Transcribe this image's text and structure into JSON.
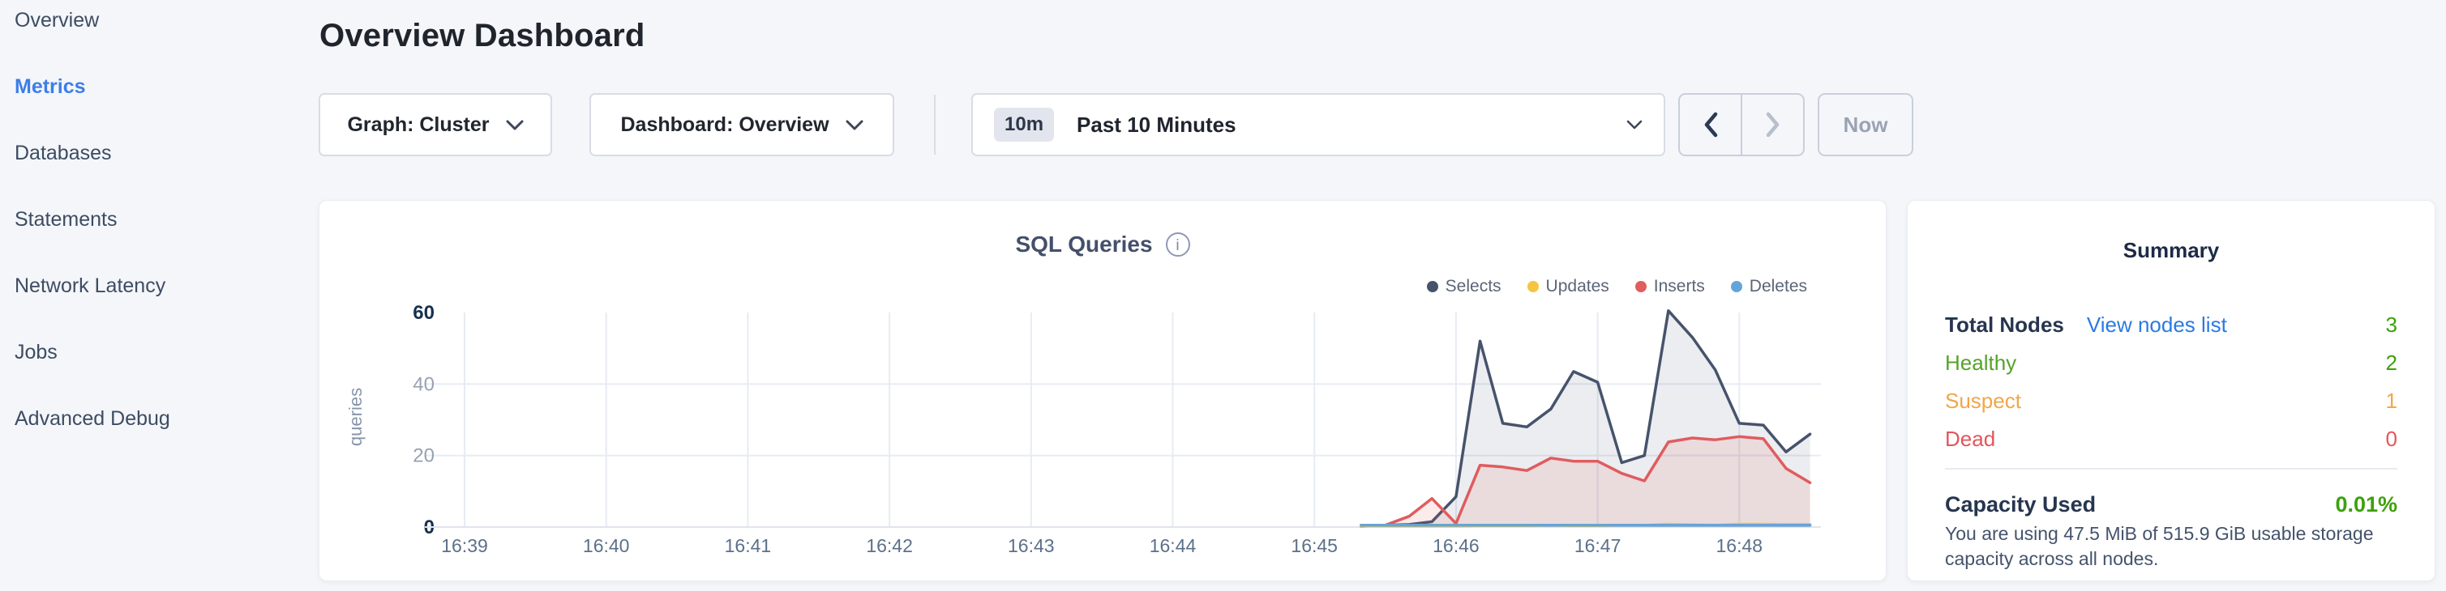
{
  "sidebar": {
    "items": [
      {
        "label": "Overview",
        "active": false
      },
      {
        "label": "Metrics",
        "active": true
      },
      {
        "label": "Databases",
        "active": false
      },
      {
        "label": "Statements",
        "active": false
      },
      {
        "label": "Network Latency",
        "active": false
      },
      {
        "label": "Jobs",
        "active": false
      },
      {
        "label": "Advanced Debug",
        "active": false
      }
    ],
    "active_color": "#3d7ee8"
  },
  "header": {
    "title": "Overview Dashboard"
  },
  "controls": {
    "graph_dropdown": {
      "label": "Graph: Cluster"
    },
    "dashboard_dropdown": {
      "label": "Dashboard: Overview"
    },
    "time_picker": {
      "badge": "10m",
      "label": "Past 10 Minutes"
    },
    "now_label": "Now"
  },
  "chart_data": {
    "type": "area",
    "title": "SQL Queries",
    "ylabel": "queries",
    "ylim": [
      0,
      60
    ],
    "y_ticks": [
      0,
      20,
      40,
      60
    ],
    "grid": true,
    "legend_position": "top-right",
    "x_ticks": [
      {
        "label": "16:39",
        "t": 0
      },
      {
        "label": "16:40",
        "t": 1
      },
      {
        "label": "16:41",
        "t": 2
      },
      {
        "label": "16:42",
        "t": 3
      },
      {
        "label": "16:43",
        "t": 4
      },
      {
        "label": "16:44",
        "t": 5
      },
      {
        "label": "16:45",
        "t": 6
      },
      {
        "label": "16:46",
        "t": 7
      },
      {
        "label": "16:47",
        "t": 8
      },
      {
        "label": "16:48",
        "t": 9
      }
    ],
    "series": [
      {
        "name": "Selects",
        "color": "#47536c",
        "fill": "rgba(68,82,107,0.10)",
        "points": [
          [
            6.33,
            0.5
          ],
          [
            6.5,
            0.5
          ],
          [
            6.67,
            0.7
          ],
          [
            6.83,
            1.5
          ],
          [
            7.0,
            8.5
          ],
          [
            7.17,
            52
          ],
          [
            7.33,
            29
          ],
          [
            7.5,
            28
          ],
          [
            7.67,
            33
          ],
          [
            7.83,
            43.5
          ],
          [
            8.0,
            40.5
          ],
          [
            8.17,
            18
          ],
          [
            8.33,
            20
          ],
          [
            8.5,
            60.5
          ],
          [
            8.67,
            53
          ],
          [
            8.83,
            44
          ],
          [
            9.0,
            29
          ],
          [
            9.17,
            28.5
          ],
          [
            9.33,
            21
          ],
          [
            9.5,
            26
          ]
        ]
      },
      {
        "name": "Updates",
        "color": "#f4c542",
        "fill": "none",
        "points": [
          [
            6.33,
            0.3
          ],
          [
            6.5,
            0.3
          ],
          [
            6.67,
            0.3
          ],
          [
            6.83,
            0.3
          ],
          [
            7.0,
            0.3
          ],
          [
            7.17,
            0.4
          ],
          [
            7.33,
            0.4
          ],
          [
            7.5,
            0.4
          ],
          [
            7.67,
            0.5
          ],
          [
            7.83,
            0.4
          ],
          [
            8.0,
            0.4
          ],
          [
            8.17,
            0.5
          ],
          [
            8.33,
            0.5
          ],
          [
            8.5,
            0.8
          ],
          [
            8.67,
            0.6
          ],
          [
            8.83,
            0.5
          ],
          [
            9.0,
            0.8
          ],
          [
            9.17,
            0.8
          ],
          [
            9.33,
            0.7
          ],
          [
            9.5,
            0.7
          ]
        ]
      },
      {
        "name": "Inserts",
        "color": "#e05c5e",
        "fill": "rgba(224,92,94,0.12)",
        "points": [
          [
            6.33,
            0.2
          ],
          [
            6.5,
            0.5
          ],
          [
            6.67,
            3
          ],
          [
            6.83,
            8
          ],
          [
            7.0,
            1
          ],
          [
            7.17,
            17.3
          ],
          [
            7.33,
            16.8
          ],
          [
            7.5,
            15.8
          ],
          [
            7.67,
            19.3
          ],
          [
            7.83,
            18.4
          ],
          [
            8.0,
            18.4
          ],
          [
            8.17,
            15
          ],
          [
            8.33,
            12.9
          ],
          [
            8.5,
            23.8
          ],
          [
            8.67,
            24.9
          ],
          [
            8.83,
            24.4
          ],
          [
            9.0,
            25.3
          ],
          [
            9.17,
            24.7
          ],
          [
            9.33,
            16.4
          ],
          [
            9.5,
            12.4
          ]
        ]
      },
      {
        "name": "Deletes",
        "color": "#64a5d9",
        "fill": "none",
        "points": [
          [
            6.33,
            0.5
          ],
          [
            6.5,
            0.5
          ],
          [
            6.67,
            0.5
          ],
          [
            6.83,
            0.5
          ],
          [
            7.0,
            0.5
          ],
          [
            7.17,
            0.5
          ],
          [
            7.33,
            0.5
          ],
          [
            7.5,
            0.5
          ],
          [
            7.67,
            0.5
          ],
          [
            7.83,
            0.5
          ],
          [
            8.0,
            0.5
          ],
          [
            8.17,
            0.5
          ],
          [
            8.33,
            0.5
          ],
          [
            8.5,
            0.5
          ],
          [
            8.67,
            0.5
          ],
          [
            8.83,
            0.5
          ],
          [
            9.0,
            0.5
          ],
          [
            9.17,
            0.5
          ],
          [
            9.33,
            0.5
          ],
          [
            9.5,
            0.5
          ]
        ]
      }
    ]
  },
  "summary": {
    "title": "Summary",
    "rows": [
      {
        "label": "Total Nodes",
        "label_color": "#26354f",
        "bold": true,
        "link": "View nodes list",
        "value": "3",
        "value_color": "#3da10c"
      },
      {
        "label": "Healthy",
        "label_color": "#55a32a",
        "bold": false,
        "link": "",
        "value": "2",
        "value_color": "#3da10c"
      },
      {
        "label": "Suspect",
        "label_color": "#f2a64a",
        "bold": false,
        "link": "",
        "value": "1",
        "value_color": "#f2a64a"
      },
      {
        "label": "Dead",
        "label_color": "#e4555b",
        "bold": false,
        "link": "",
        "value": "0",
        "value_color": "#e4555b"
      }
    ],
    "capacity": {
      "label": "Capacity Used",
      "value": "0.01%",
      "value_color": "#3da10c",
      "description": "You are using 47.5 MiB of 515.9 GiB usable storage capacity across all nodes."
    }
  }
}
